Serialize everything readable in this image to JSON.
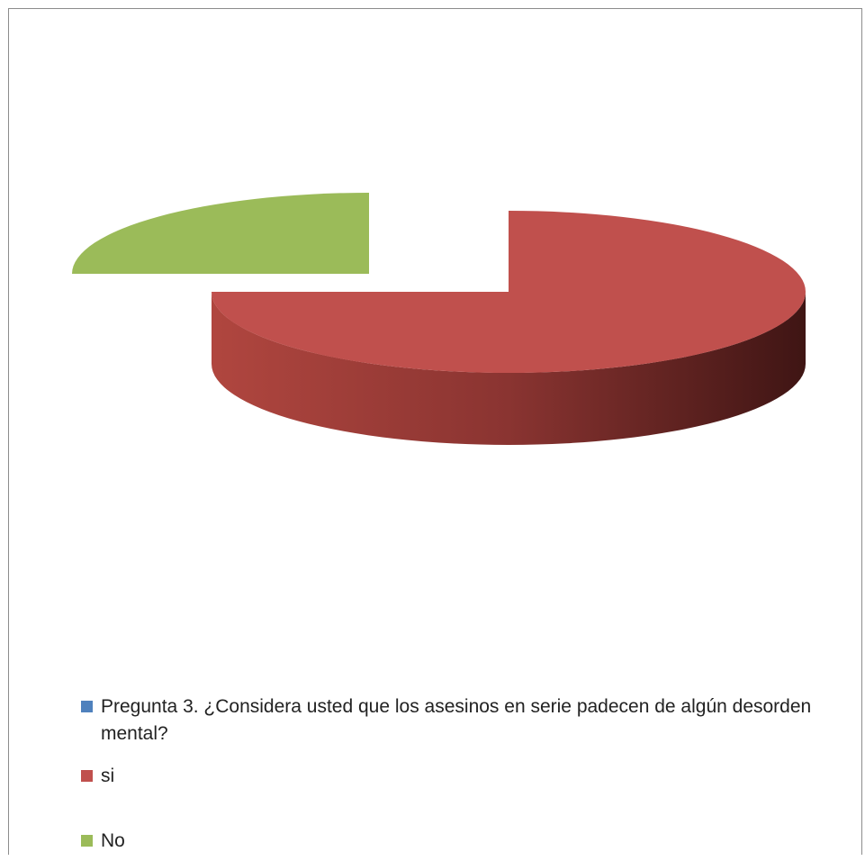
{
  "chart_data": {
    "type": "pie",
    "style": "3d-exploded",
    "title": "",
    "series_name": "Pregunta 3. ¿Considera usted que los asesinos en serie padecen de algún desorden mental?",
    "categories": [
      "si",
      "No"
    ],
    "values": [
      75,
      25
    ],
    "colors": {
      "series": "#4F81BD",
      "si": "#C0504D",
      "No": "#9BBB59"
    },
    "legend_placement": "bottom",
    "legend": [
      {
        "label": "Pregunta 3. ¿Considera usted que los asesinos en serie padecen de algún desorden mental?",
        "color": "#4F81BD"
      },
      {
        "label": "si",
        "color": "#C0504D"
      },
      {
        "label": "No",
        "color": "#9BBB59"
      }
    ]
  }
}
